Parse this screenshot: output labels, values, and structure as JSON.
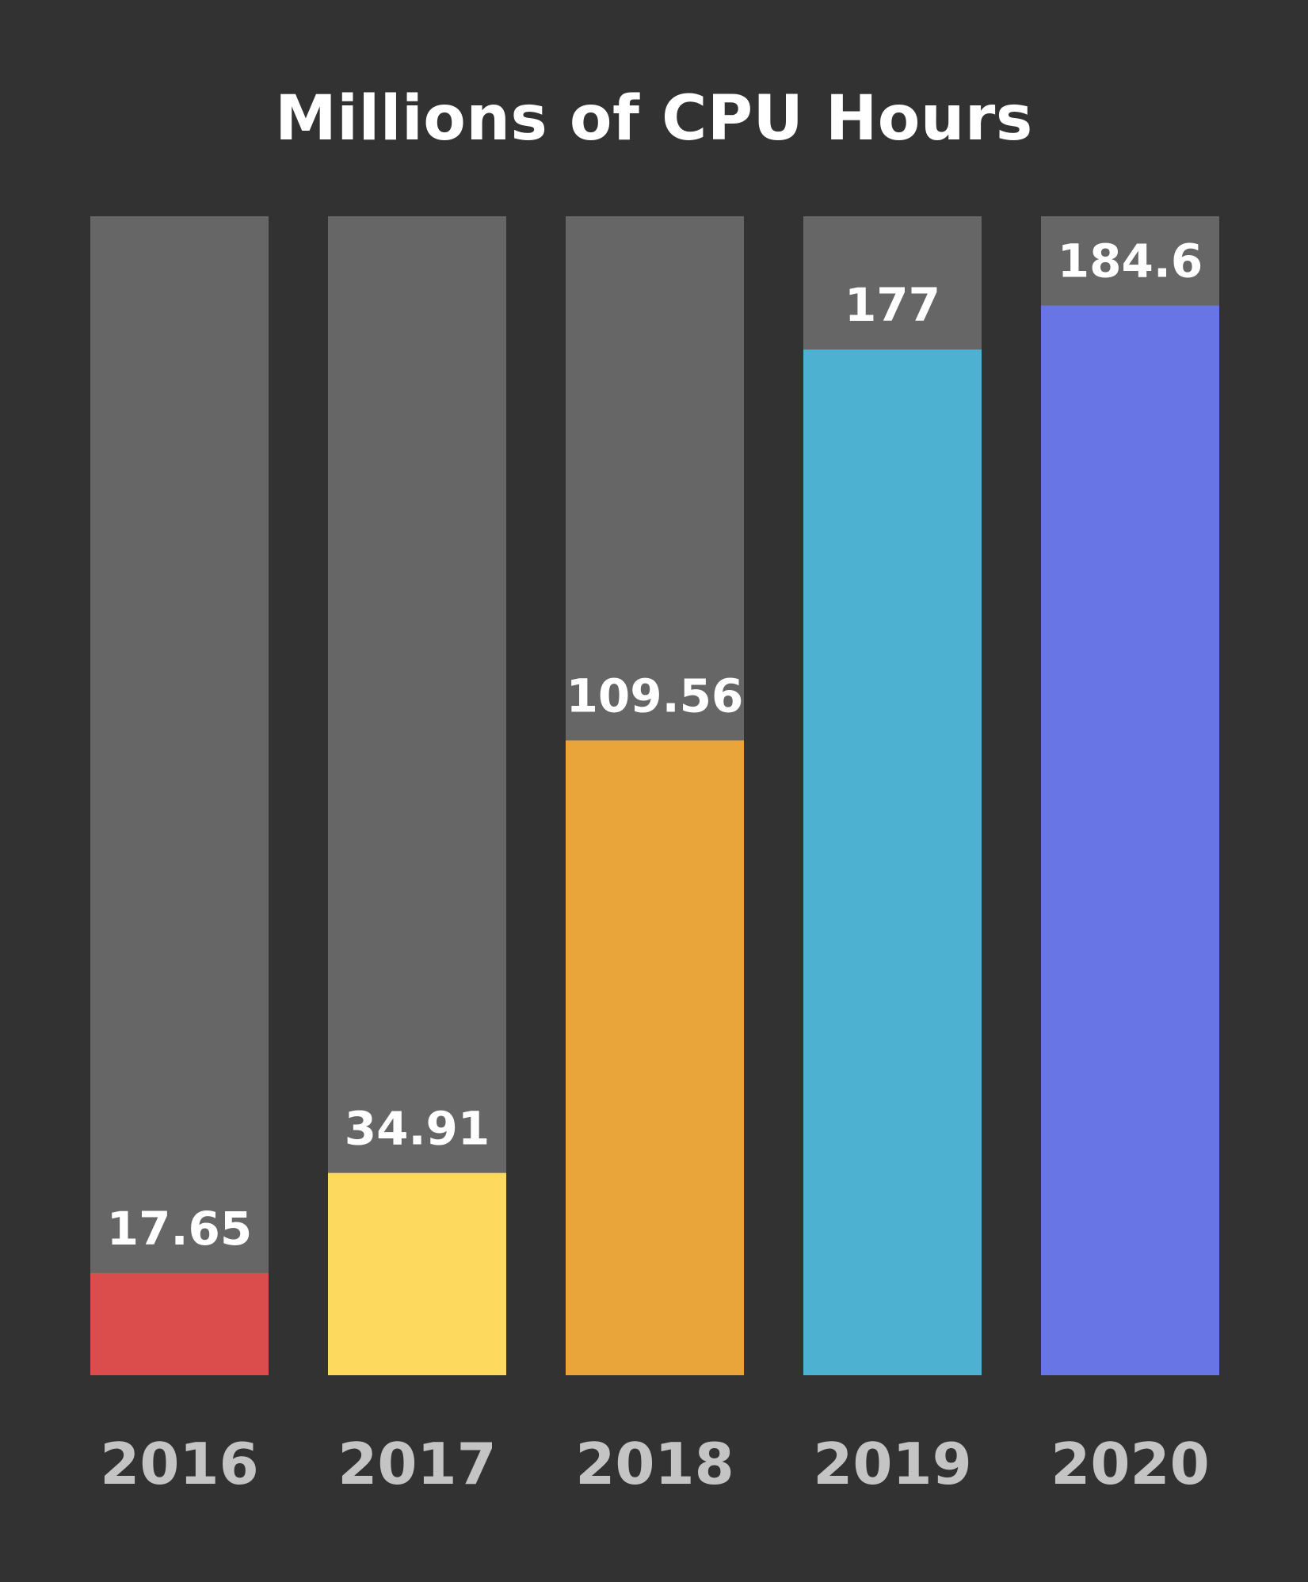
{
  "chart_data": {
    "type": "bar",
    "title": "Millions of CPU Hours",
    "categories": [
      "2016",
      "2017",
      "2018",
      "2019",
      "2020"
    ],
    "values": [
      17.65,
      34.91,
      109.56,
      177,
      184.6
    ],
    "value_labels": [
      "17.65",
      "34.91",
      "109.56",
      "177",
      "184.6"
    ],
    "ylim": [
      0,
      200
    ],
    "grid": false,
    "legend": "none",
    "colors": {
      "background": "#323232",
      "track": "#666666",
      "bars": [
        "#db4d4d",
        "#fdda5e",
        "#eaa53a",
        "#4db1d1",
        "#6875e4"
      ],
      "value_label": "#ffffff",
      "category_label": "#c4c4c4"
    }
  }
}
